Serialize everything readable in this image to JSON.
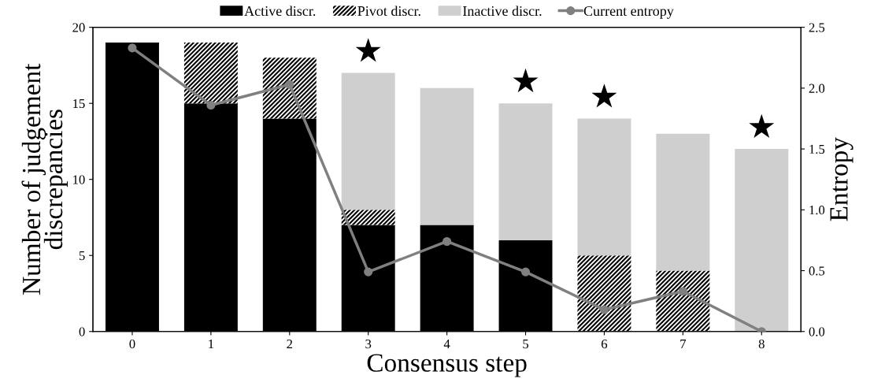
{
  "chart_data": {
    "type": "bar",
    "stacked": true,
    "xlabel": "Consensus step",
    "ylabel": "Number of judgement\ndiscrepancies",
    "y2label": "Entropy",
    "categories": [
      "0",
      "1",
      "2",
      "3",
      "4",
      "5",
      "6",
      "7",
      "8"
    ],
    "series": [
      {
        "name": "Active discr.",
        "color": "#000000",
        "values": [
          19,
          15,
          14,
          7,
          7,
          6,
          0,
          0,
          0
        ]
      },
      {
        "name": "Pivot discr.",
        "color": "#ffffff",
        "values": [
          0,
          4,
          4,
          1,
          0,
          0,
          5,
          4,
          0
        ]
      },
      {
        "name": "Inactive discr.",
        "color": "#d0cfd0",
        "values": [
          0,
          0,
          0,
          9,
          9,
          9,
          9,
          9,
          12
        ]
      },
      {
        "name": "Current entropy",
        "type": "line",
        "axis": "y2",
        "color": "#808080",
        "marker": "circle",
        "values": [
          2.33,
          1.86,
          2.03,
          0.49,
          0.74,
          0.49,
          0.18,
          0.33,
          0.0
        ]
      }
    ],
    "ylim": [
      0,
      20
    ],
    "yticks": [
      0,
      5,
      10,
      15,
      20
    ],
    "y2lim": [
      0,
      2.5
    ],
    "y2ticks": [
      {
        "value": 0,
        "label": "0.0"
      },
      {
        "value": 0.5,
        "label": "0.5"
      },
      {
        "value": 1,
        "label": "1.0"
      },
      {
        "value": 1.5,
        "label": "1.5"
      },
      {
        "value": 2,
        "label": "2.0"
      },
      {
        "value": 2.5,
        "label": "2.5"
      }
    ],
    "annotations": [
      {
        "text": "★",
        "x": "3",
        "y": 17
      },
      {
        "text": "★",
        "x": "5",
        "y": 15
      },
      {
        "text": "★",
        "x": "6",
        "y": 14
      },
      {
        "text": "★",
        "x": "8",
        "y": 12
      }
    ],
    "legend": "top",
    "grid": false
  }
}
